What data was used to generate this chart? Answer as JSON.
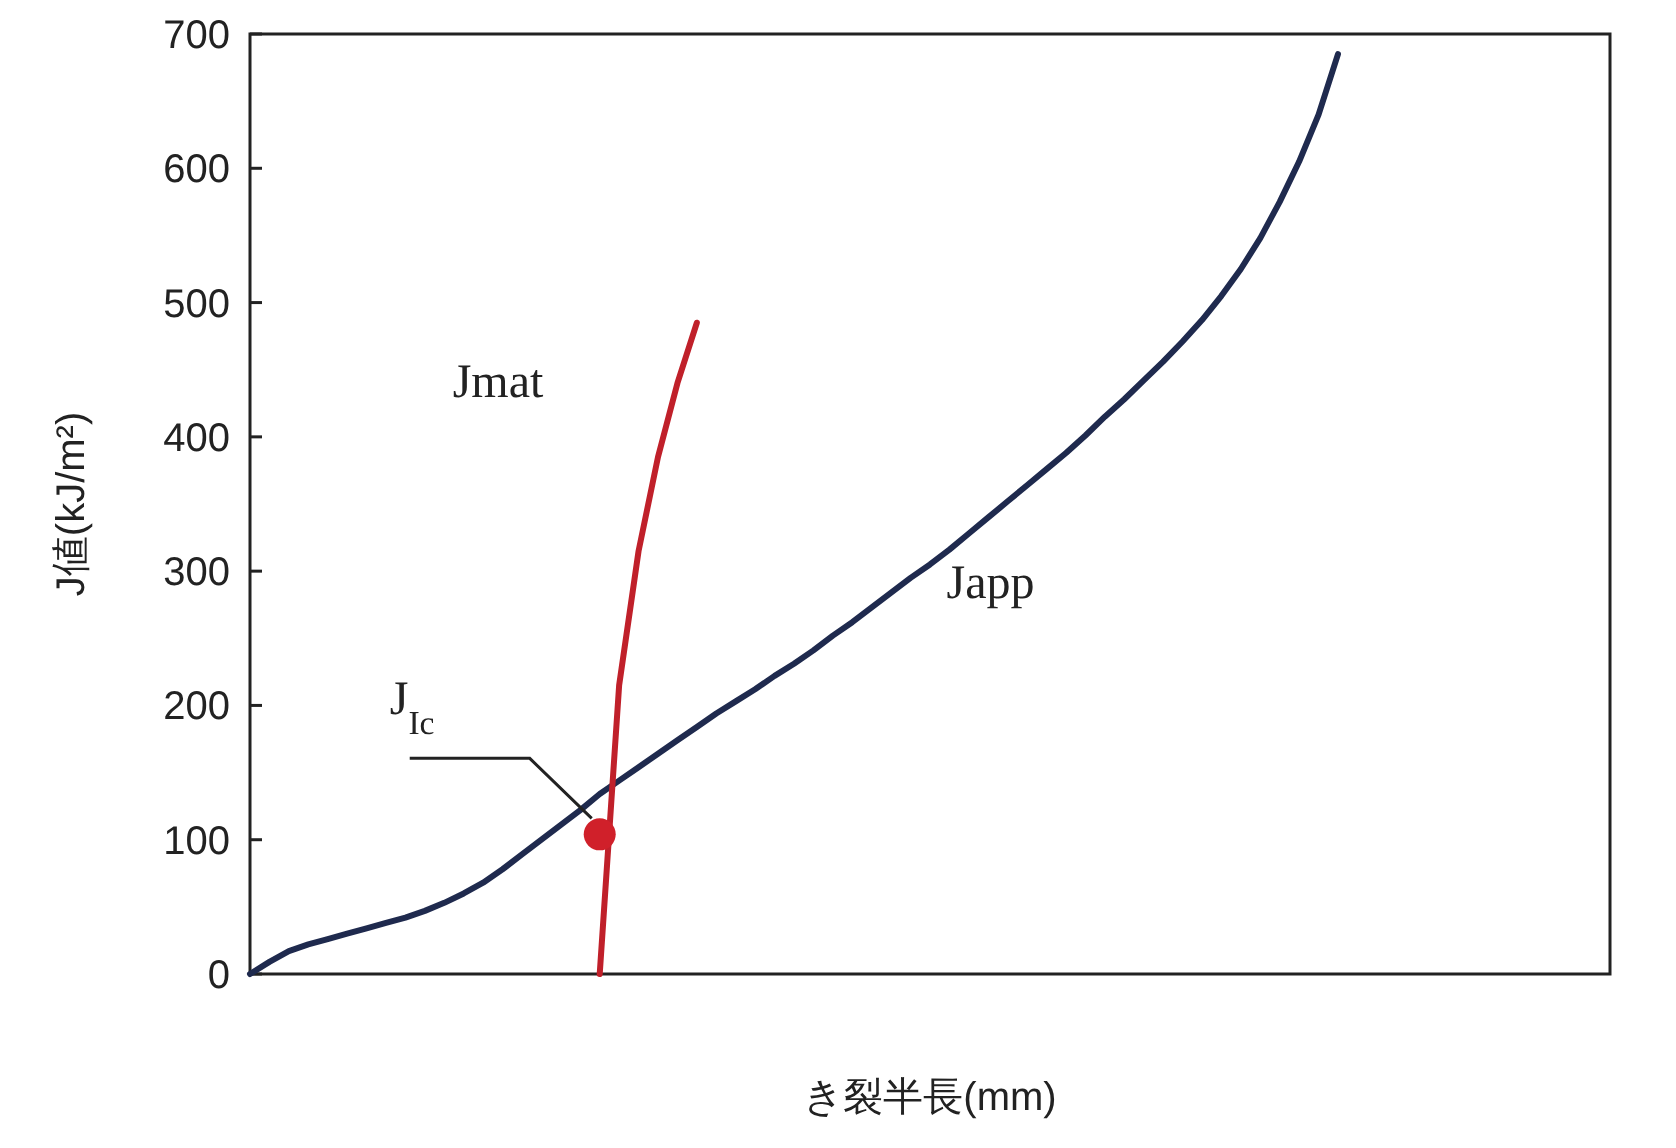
{
  "chart_data": {
    "type": "line",
    "xlabel": "き裂半長(mm)",
    "ylabel": "J値(kJ/m²)",
    "categories": [
      null,
      null,
      null,
      null,
      null,
      null,
      null,
      null,
      null,
      null,
      null,
      null,
      null,
      null,
      null,
      null,
      null,
      null,
      null,
      null,
      null,
      null,
      null,
      null,
      null,
      null,
      null,
      null,
      null,
      null,
      null,
      null,
      null,
      null,
      null,
      null,
      null,
      null,
      null,
      null,
      null,
      null,
      null,
      null,
      null,
      null,
      null,
      null,
      null,
      null,
      null,
      null,
      null,
      null,
      null,
      null,
      null,
      null,
      null,
      null,
      null,
      null,
      null,
      null,
      null,
      null,
      null,
      null,
      null,
      null,
      null
    ],
    "ylim": [
      0,
      700
    ],
    "yticks": [
      0,
      100,
      200,
      300,
      400,
      500,
      600,
      700
    ],
    "tick_labels": "y",
    "grid": false,
    "series": [
      {
        "name": "Japp",
        "color": "#1f2a4e",
        "values": [
          0,
          9,
          17,
          22,
          26,
          30,
          34,
          38,
          42,
          47,
          53,
          60,
          68,
          78,
          89,
          100,
          111,
          122,
          134,
          144,
          154,
          164,
          174,
          184,
          194,
          203,
          212,
          222,
          231,
          241,
          252,
          262,
          273,
          284,
          295,
          305,
          316,
          328,
          340,
          352,
          364,
          376,
          388,
          401,
          415,
          428,
          442,
          456,
          471,
          487,
          505,
          525,
          548,
          575,
          605,
          640,
          685,
          null,
          null,
          null,
          null,
          null,
          null,
          null,
          null,
          null,
          null,
          null,
          null,
          null,
          null
        ]
      },
      {
        "name": "Jmat",
        "color": "#c0202a",
        "values": [
          null,
          null,
          null,
          null,
          null,
          null,
          null,
          null,
          null,
          null,
          null,
          null,
          null,
          null,
          null,
          null,
          null,
          null,
          0,
          215,
          315,
          385,
          440,
          485,
          null,
          null,
          null,
          null,
          null,
          null,
          null,
          null,
          null,
          null,
          null,
          null,
          null,
          null,
          null,
          null,
          null,
          null,
          null,
          null,
          null,
          null,
          null,
          null,
          null,
          null,
          null,
          null,
          null,
          null,
          null,
          null,
          null,
          null,
          null,
          null,
          null,
          null,
          null,
          null,
          null,
          null,
          null,
          null,
          null,
          null,
          null
        ]
      },
      {
        "type": "scatter",
        "color": "#d0202a",
        "values": [
          null,
          null,
          null,
          null,
          null,
          null,
          null,
          null,
          null,
          null,
          null,
          null,
          null,
          null,
          null,
          null,
          null,
          null,
          104,
          null,
          null,
          null,
          null,
          null,
          null,
          null,
          null,
          null,
          null,
          null,
          null,
          null,
          null,
          null,
          null,
          null,
          null,
          null,
          null,
          null,
          null,
          null,
          null,
          null,
          null,
          null,
          null,
          null,
          null,
          null,
          null,
          null,
          null,
          null,
          null,
          null,
          null,
          null,
          null,
          null,
          null,
          null,
          null,
          null,
          null,
          null,
          null,
          null,
          null,
          null,
          null
        ]
      }
    ],
    "annotations": [
      "J$_{Ic}$"
    ]
  }
}
